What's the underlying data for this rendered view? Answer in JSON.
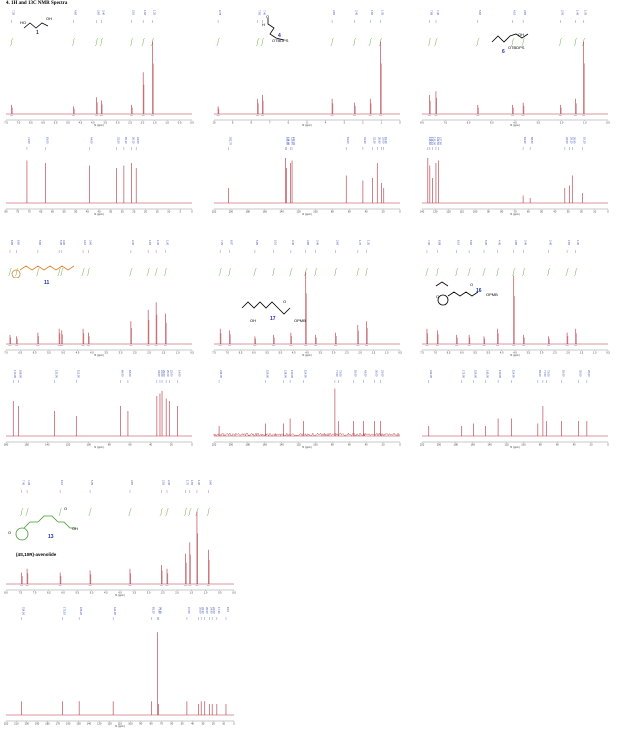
{
  "page": {
    "title": "4. 1H and 13C NMR Spectra"
  },
  "colors": {
    "spectrum": "#b0303a",
    "peak_labels": "#2a3fb0",
    "integrals": "#6bb04a",
    "axis": "#7a7a7a",
    "structure_green": "#3f9a2a",
    "structure_orange": "#e0802a",
    "compound_label": "#1a2fb0"
  },
  "compounds": {
    "c1": {
      "number": "1",
      "groups": [
        "HO",
        "OH"
      ]
    },
    "c4": {
      "number": "4",
      "groups": [
        "O",
        "H",
        "OTBDPS"
      ]
    },
    "c6": {
      "number": "6",
      "groups": [
        "OH",
        "OTBDPS"
      ]
    },
    "c11": {
      "number": "11"
    },
    "c17": {
      "number": "17",
      "groups": [
        "OH",
        "O",
        "OPMB"
      ]
    },
    "c16": {
      "number": "16",
      "groups": [
        "O",
        "O",
        "OPMB"
      ]
    },
    "c13": {
      "number": "13",
      "groups": [
        "O",
        "O",
        "OH"
      ],
      "name": "(4S,10R)-avenolide"
    }
  },
  "chart_data": [
    {
      "type": "line",
      "id": "1H-1",
      "xlabel": "f1 (ppm)",
      "xlim": [
        7.5,
        -0.5
      ],
      "x_ticks": [
        "7.5",
        "7.0",
        "6.5",
        "6.0",
        "5.5",
        "5.0",
        "4.5",
        "4.0",
        "3.5",
        "3.0",
        "2.5",
        "2.0",
        "1.5",
        "1.0",
        "0.5",
        "0.0"
      ],
      "peaks": [
        {
          "x": 7.26,
          "h": 0.12
        },
        {
          "x": 4.6,
          "h": 0.1
        },
        {
          "x": 3.6,
          "h": 0.22
        },
        {
          "x": 3.4,
          "h": 0.18
        },
        {
          "x": 2.1,
          "h": 0.12
        },
        {
          "x": 1.6,
          "h": 0.55
        },
        {
          "x": 1.2,
          "h": 0.95
        }
      ]
    },
    {
      "type": "line",
      "id": "1H-4",
      "xlabel": "f1 (ppm)",
      "xlim": [
        10,
        0
      ],
      "x_ticks": [
        "10",
        "9",
        "8",
        "7",
        "6",
        "5",
        "4",
        "3",
        "2",
        "1",
        "0"
      ],
      "peaks": [
        {
          "x": 9.78,
          "h": 0.1
        },
        {
          "x": 7.65,
          "h": 0.2
        },
        {
          "x": 7.4,
          "h": 0.25
        },
        {
          "x": 3.65,
          "h": 0.2
        },
        {
          "x": 2.45,
          "h": 0.15
        },
        {
          "x": 1.6,
          "h": 0.2
        },
        {
          "x": 1.05,
          "h": 0.95
        }
      ]
    },
    {
      "type": "line",
      "id": "1H-6",
      "xlabel": "f1 (ppm)",
      "xlim": [
        8,
        0
      ],
      "x_ticks": [
        "8.0",
        "7.0",
        "6.0",
        "5.0",
        "4.0",
        "3.0",
        "2.0",
        "1.0",
        "0.0"
      ],
      "peaks": [
        {
          "x": 7.68,
          "h": 0.25
        },
        {
          "x": 7.4,
          "h": 0.3
        },
        {
          "x": 5.6,
          "h": 0.12
        },
        {
          "x": 4.1,
          "h": 0.12
        },
        {
          "x": 3.65,
          "h": 0.15
        },
        {
          "x": 2.05,
          "h": 0.12
        },
        {
          "x": 1.4,
          "h": 0.2
        },
        {
          "x": 1.05,
          "h": 0.95
        }
      ]
    },
    {
      "type": "line",
      "id": "13C-1",
      "xlabel": "f1 (ppm)",
      "xlim": [
        80,
        0
      ],
      "x_ticks": [
        "80",
        "75",
        "70",
        "65",
        "60",
        "55",
        "50",
        "45",
        "40",
        "35",
        "30",
        "25",
        "20",
        "15",
        "10",
        "5",
        "0"
      ],
      "peaks": [
        {
          "x": 71.0,
          "h": 0.85
        },
        {
          "x": 63.0,
          "h": 0.8
        },
        {
          "x": 44.0,
          "h": 0.75
        },
        {
          "x": 32.5,
          "h": 0.7
        },
        {
          "x": 29.3,
          "h": 0.75
        },
        {
          "x": 26.1,
          "h": 0.8
        },
        {
          "x": 24.0,
          "h": 0.7
        }
      ]
    },
    {
      "type": "line",
      "id": "13C-4",
      "xlabel": "f1 (ppm)",
      "xlim": [
        220,
        0
      ],
      "x_ticks": [
        "220",
        "200",
        "180",
        "160",
        "140",
        "120",
        "100",
        "80",
        "60",
        "40",
        "20",
        "0"
      ],
      "peaks": [
        {
          "x": 202.7,
          "h": 0.3
        },
        {
          "x": 135.5,
          "h": 0.9
        },
        {
          "x": 134.0,
          "h": 0.7
        },
        {
          "x": 129.6,
          "h": 0.8
        },
        {
          "x": 127.7,
          "h": 0.85
        },
        {
          "x": 63.6,
          "h": 0.55
        },
        {
          "x": 43.9,
          "h": 0.45
        },
        {
          "x": 32.3,
          "h": 0.5
        },
        {
          "x": 26.9,
          "h": 0.8
        },
        {
          "x": 22.0,
          "h": 0.4
        },
        {
          "x": 19.2,
          "h": 0.3
        }
      ]
    },
    {
      "type": "line",
      "id": "13C-6",
      "xlabel": "f1 (ppm)",
      "xlim": [
        140,
        0
      ],
      "x_ticks": [
        "140",
        "130",
        "120",
        "110",
        "100",
        "90",
        "80",
        "70",
        "60",
        "50",
        "40",
        "30",
        "20",
        "10",
        "0"
      ],
      "peaks": [
        {
          "x": 135.6,
          "h": 0.9
        },
        {
          "x": 134.1,
          "h": 0.75
        },
        {
          "x": 132.0,
          "h": 0.5
        },
        {
          "x": 129.5,
          "h": 0.8
        },
        {
          "x": 127.6,
          "h": 0.85
        },
        {
          "x": 63.9,
          "h": 0.15
        },
        {
          "x": 58.6,
          "h": 0.1
        },
        {
          "x": 32.5,
          "h": 0.3
        },
        {
          "x": 29.1,
          "h": 0.35
        },
        {
          "x": 26.9,
          "h": 0.55
        },
        {
          "x": 19.2,
          "h": 0.2
        }
      ]
    },
    {
      "type": "line",
      "id": "1H-11",
      "xlabel": "f1 (ppm)",
      "xlim": [
        7,
        0
      ],
      "x_ticks": [
        "7.0",
        "6.5",
        "6.0",
        "5.5",
        "5.0",
        "4.5",
        "4.0",
        "3.5",
        "3.0",
        "2.5",
        "2.0",
        "1.5",
        "1.0",
        "0.5"
      ],
      "peaks": [
        {
          "x": 6.85,
          "h": 0.12
        },
        {
          "x": 6.6,
          "h": 0.1
        },
        {
          "x": 5.8,
          "h": 0.15
        },
        {
          "x": 5.0,
          "h": 0.2
        },
        {
          "x": 4.9,
          "h": 0.18
        },
        {
          "x": 4.1,
          "h": 0.2
        },
        {
          "x": 3.9,
          "h": 0.15
        },
        {
          "x": 2.3,
          "h": 0.3
        },
        {
          "x": 1.65,
          "h": 0.45
        },
        {
          "x": 1.35,
          "h": 0.55
        },
        {
          "x": 1.0,
          "h": 0.4
        }
      ]
    },
    {
      "type": "line",
      "id": "1H-17",
      "xlabel": "f1 (ppm)",
      "xlim": [
        7.5,
        0
      ],
      "x_ticks": [
        "7.5",
        "7.0",
        "6.5",
        "6.0",
        "5.5",
        "5.0",
        "4.5",
        "4.0",
        "3.5",
        "3.0",
        "2.5",
        "2.0",
        "1.5",
        "1.0",
        "0.5"
      ],
      "peaks": [
        {
          "x": 7.25,
          "h": 0.2
        },
        {
          "x": 6.87,
          "h": 0.18
        },
        {
          "x": 5.85,
          "h": 0.1
        },
        {
          "x": 5.1,
          "h": 0.12
        },
        {
          "x": 4.4,
          "h": 0.15
        },
        {
          "x": 3.8,
          "h": 0.95
        },
        {
          "x": 3.4,
          "h": 0.12
        },
        {
          "x": 2.6,
          "h": 0.15
        },
        {
          "x": 1.7,
          "h": 0.25
        },
        {
          "x": 1.35,
          "h": 0.3
        }
      ]
    },
    {
      "type": "line",
      "id": "1H-16",
      "xlabel": "f1 (ppm)",
      "xlim": [
        7.5,
        0
      ],
      "x_ticks": [
        "7.5",
        "7.0",
        "6.5",
        "6.0",
        "5.5",
        "5.0",
        "4.5",
        "4.0",
        "3.5",
        "3.0",
        "2.5",
        "2.0",
        "1.5",
        "1.0",
        "0.5"
      ],
      "peaks": [
        {
          "x": 7.3,
          "h": 0.2
        },
        {
          "x": 6.88,
          "h": 0.18
        },
        {
          "x": 6.1,
          "h": 0.12
        },
        {
          "x": 5.6,
          "h": 0.12
        },
        {
          "x": 5.0,
          "h": 0.1
        },
        {
          "x": 4.45,
          "h": 0.2
        },
        {
          "x": 3.8,
          "h": 0.9
        },
        {
          "x": 3.4,
          "h": 0.12
        },
        {
          "x": 2.4,
          "h": 0.1
        },
        {
          "x": 1.65,
          "h": 0.15
        },
        {
          "x": 1.3,
          "h": 0.2
        }
      ]
    },
    {
      "type": "line",
      "id": "13C-11",
      "xlabel": "f1 (ppm)",
      "xlim": [
        180,
        0
      ],
      "x_ticks": [
        "180",
        "160",
        "140",
        "120",
        "100",
        "80",
        "60",
        "40",
        "20",
        "0"
      ],
      "peaks": [
        {
          "x": 173.0,
          "h": 0.7
        },
        {
          "x": 168.0,
          "h": 0.6
        },
        {
          "x": 133.0,
          "h": 0.5
        },
        {
          "x": 112.0,
          "h": 0.4
        },
        {
          "x": 69.0,
          "h": 0.6
        },
        {
          "x": 62.0,
          "h": 0.5
        },
        {
          "x": 34.0,
          "h": 0.8
        },
        {
          "x": 31.0,
          "h": 0.85
        },
        {
          "x": 29.0,
          "h": 0.9
        },
        {
          "x": 25.0,
          "h": 0.75
        },
        {
          "x": 22.0,
          "h": 0.7
        },
        {
          "x": 14.0,
          "h": 0.6
        }
      ]
    },
    {
      "type": "line",
      "id": "13C-17",
      "xlabel": "f1 (ppm)",
      "xlim": [
        220,
        0
      ],
      "x_ticks": [
        "220",
        "200",
        "180",
        "160",
        "140",
        "120",
        "100",
        "80",
        "60",
        "40",
        "20",
        "0"
      ],
      "peaks": [
        {
          "x": 214.0,
          "h": 0.2
        },
        {
          "x": 159.0,
          "h": 0.25
        },
        {
          "x": 138.0,
          "h": 0.25
        },
        {
          "x": 130.0,
          "h": 0.35
        },
        {
          "x": 114.0,
          "h": 0.3
        },
        {
          "x": 77.0,
          "h": 0.95
        },
        {
          "x": 73.0,
          "h": 0.3
        },
        {
          "x": 55.0,
          "h": 0.3
        },
        {
          "x": 43.0,
          "h": 0.3
        },
        {
          "x": 30.0,
          "h": 0.3
        },
        {
          "x": 23.0,
          "h": 0.3
        }
      ]
    },
    {
      "type": "line",
      "id": "13C-16",
      "xlabel": "f1 (ppm)",
      "xlim": [
        220,
        0
      ],
      "x_ticks": [
        "220",
        "200",
        "180",
        "160",
        "140",
        "120",
        "100",
        "80",
        "60",
        "40",
        "20",
        "0"
      ],
      "peaks": [
        {
          "x": 212.0,
          "h": 0.2
        },
        {
          "x": 173.0,
          "h": 0.2
        },
        {
          "x": 159.0,
          "h": 0.25
        },
        {
          "x": 145.0,
          "h": 0.2
        },
        {
          "x": 130.0,
          "h": 0.35
        },
        {
          "x": 114.0,
          "h": 0.35
        },
        {
          "x": 83.0,
          "h": 0.25
        },
        {
          "x": 77.0,
          "h": 0.6
        },
        {
          "x": 73.0,
          "h": 0.3
        },
        {
          "x": 55.0,
          "h": 0.3
        },
        {
          "x": 35.0,
          "h": 0.3
        },
        {
          "x": 25.0,
          "h": 0.3
        }
      ]
    },
    {
      "type": "line",
      "id": "1H-13",
      "xlabel": "f1 (ppm)",
      "xlim": [
        8,
        0
      ],
      "x_ticks": [
        "8.0",
        "7.5",
        "7.0",
        "6.5",
        "6.0",
        "5.5",
        "5.0",
        "4.5",
        "4.0",
        "3.5",
        "3.0",
        "2.5",
        "2.0",
        "1.5",
        "1.0",
        "0.5",
        "0.0"
      ],
      "peaks": [
        {
          "x": 7.45,
          "h": 0.15
        },
        {
          "x": 7.26,
          "h": 0.2
        },
        {
          "x": 6.1,
          "h": 0.15
        },
        {
          "x": 5.05,
          "h": 0.18
        },
        {
          "x": 3.65,
          "h": 0.2
        },
        {
          "x": 2.55,
          "h": 0.25
        },
        {
          "x": 2.35,
          "h": 0.2
        },
        {
          "x": 1.7,
          "h": 0.4
        },
        {
          "x": 1.55,
          "h": 0.55
        },
        {
          "x": 1.3,
          "h": 0.95
        },
        {
          "x": 0.9,
          "h": 0.45
        }
      ]
    },
    {
      "type": "line",
      "id": "13C-13",
      "xlabel": "f1 (ppm)",
      "xlim": [
        230,
        0
      ],
      "x_ticks": [
        "220",
        "210",
        "200",
        "190",
        "180",
        "170",
        "160",
        "150",
        "140",
        "130",
        "120",
        "110",
        "100",
        "90",
        "80",
        "70",
        "60",
        "50",
        "40",
        "30",
        "20",
        "10",
        "0"
      ],
      "peaks": [
        {
          "x": 214.5,
          "h": 0.15
        },
        {
          "x": 173.1,
          "h": 0.15
        },
        {
          "x": 156.2,
          "h": 0.15
        },
        {
          "x": 121.9,
          "h": 0.15
        },
        {
          "x": 83.3,
          "h": 0.15
        },
        {
          "x": 77.2,
          "h": 0.9
        },
        {
          "x": 76.2,
          "h": 0.12
        },
        {
          "x": 47.5,
          "h": 0.15
        },
        {
          "x": 35.6,
          "h": 0.12
        },
        {
          "x": 33.1,
          "h": 0.15
        },
        {
          "x": 29.5,
          "h": 0.15
        },
        {
          "x": 24.9,
          "h": 0.12
        },
        {
          "x": 22.0,
          "h": 0.12
        },
        {
          "x": 17.3,
          "h": 0.12
        },
        {
          "x": 8.1,
          "h": 0.12
        }
      ]
    }
  ]
}
